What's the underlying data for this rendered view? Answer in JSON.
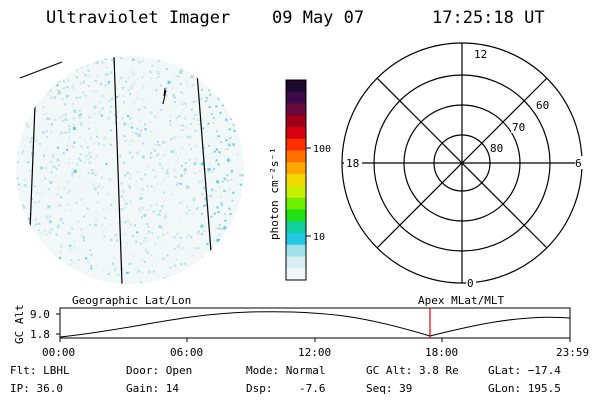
{
  "header": {
    "title": "Ultraviolet Imager",
    "date": "09 May 07",
    "time": "17:25:18 UT"
  },
  "colorbar": {
    "unit_label": "photon cm⁻²s⁻¹",
    "ticks": [
      "100",
      "10"
    ],
    "colors": [
      "#1a0a2e",
      "#3a0a4a",
      "#6a0a3a",
      "#a00018",
      "#d80010",
      "#ff3000",
      "#ff7000",
      "#ffa800",
      "#f0d800",
      "#c8f000",
      "#70f000",
      "#20e010",
      "#10d0a0",
      "#20c8e0",
      "#a0e0e8",
      "#d8eef0",
      "#f2f8f8"
    ]
  },
  "polar": {
    "labels": {
      "top": "12",
      "left": "18",
      "right": "6",
      "bottom": "0"
    },
    "ring_labels": [
      "60",
      "70",
      "80"
    ]
  },
  "timeline": {
    "left_label": "Geographic Lat/Lon",
    "right_label": "Apex MLat/MLT",
    "y_axis_label": "GC Alt",
    "y_ticks": [
      "9.0",
      "1.8"
    ],
    "x_ticks": [
      "00:00",
      "06:00",
      "12:00",
      "18:00",
      "23:59"
    ],
    "marker_color": "#e00000"
  },
  "info": {
    "flt": "Flt: LBHL",
    "ip": "IP: 36.0",
    "door": "Door: Open",
    "gain": "Gain: 14",
    "mode": "Mode: Normal",
    "dsp": "Dsp:    -7.6",
    "gcalt": "GC Alt: 3.8 Re",
    "seq": "Seq: 39",
    "glat": "GLat: −17.4",
    "glon": "GLon: 195.5"
  }
}
